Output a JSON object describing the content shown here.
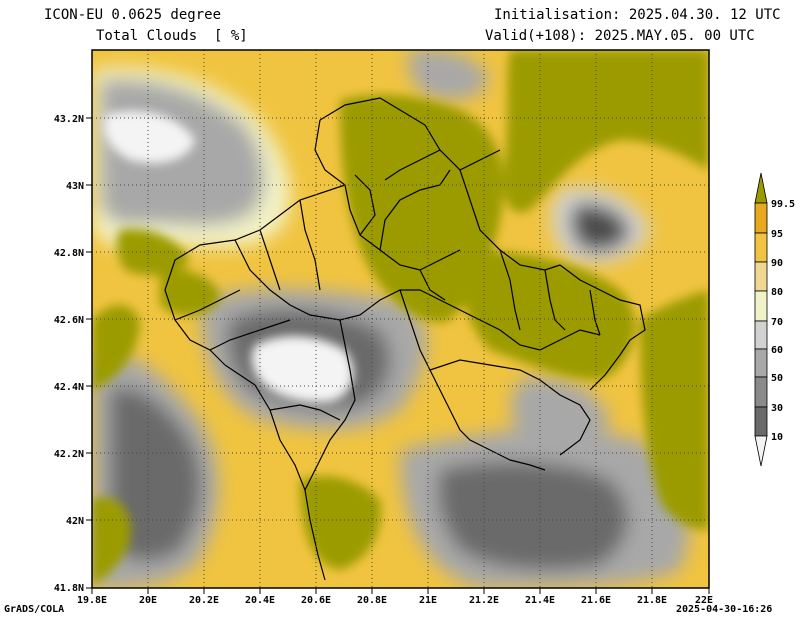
{
  "header": {
    "model": "ICON-EU 0.0625 degree",
    "variable": "Total Clouds  [ %]",
    "init": "Initialisation: 2025.04.30. 12 UTC",
    "valid": "Valid(+108): 2025.MAY.05. 00 UTC"
  },
  "footer": {
    "software": "GrADS/COLA",
    "timestamp": "2025-04-30-16:26"
  },
  "map": {
    "x_ticks": [
      "19.8E",
      "20E",
      "20.2E",
      "20.4E",
      "20.6E",
      "20.8E",
      "21E",
      "21.2E",
      "21.4E",
      "21.6E",
      "21.8E",
      "22E"
    ],
    "y_ticks": [
      "43.2N",
      "43N",
      "42.8N",
      "42.6N",
      "42.4N",
      "42.2N",
      "42N",
      "41.8N"
    ]
  },
  "legend": {
    "levels": [
      "99.5",
      "95",
      "90",
      "80",
      "70",
      "60",
      "50",
      "30",
      "10"
    ],
    "colors": [
      "#9b9b00",
      "#e8a820",
      "#f0c440",
      "#f0d890",
      "#f2f2c8",
      "#d2d2d2",
      "#a8a8a8",
      "#8a8a8a",
      "#6a6a6a",
      "#4e4e4e",
      "#f4f4f4"
    ]
  }
}
